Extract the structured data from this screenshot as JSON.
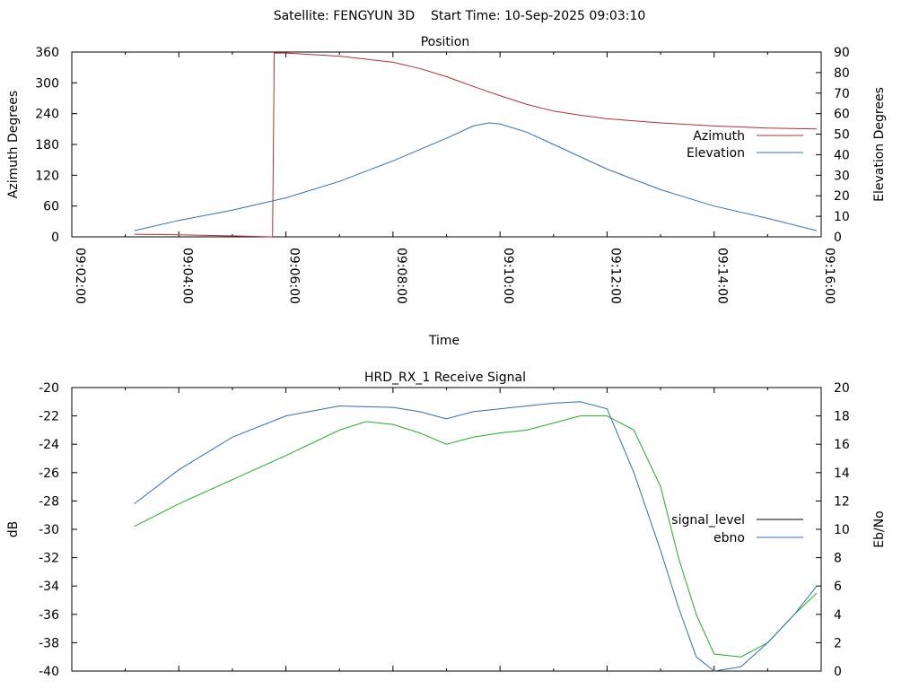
{
  "header": {
    "title": "Satellite: FENGYUN 3D    Start Time: 10-Sep-2025 09:03:10"
  },
  "colors": {
    "azimuth": "#b03030",
    "elevation": "#3070b0",
    "signal_level": "#20b020",
    "ebno": "#2f6eb0",
    "axis": "#000000"
  },
  "chart_data": [
    {
      "type": "line",
      "title": "Position",
      "xlabel": "Time",
      "ylabel": "Azimuth Degrees",
      "y2label": "Elevation Degrees",
      "xlim": [
        "09:02:00",
        "09:16:00"
      ],
      "ylim": [
        0,
        360
      ],
      "y2lim": [
        0,
        90
      ],
      "xticks": [
        "09:02:00",
        "09:04:00",
        "09:06:00",
        "09:08:00",
        "09:10:00",
        "09:12:00",
        "09:14:00",
        "09:16:00"
      ],
      "yticks": [
        "0",
        "60",
        "120",
        "180",
        "240",
        "300",
        "360"
      ],
      "y2ticks": [
        "0",
        "10",
        "20",
        "30",
        "40",
        "50",
        "60",
        "70",
        "80",
        "90"
      ],
      "legend_position": "right",
      "series": [
        {
          "name": "Azimuth",
          "axis": "y",
          "x": [
            "09:03:10",
            "09:04:00",
            "09:05:00",
            "09:05:45",
            "09:05:47",
            "09:06:00",
            "09:07:00",
            "09:08:00",
            "09:08:30",
            "09:09:00",
            "09:09:30",
            "09:10:00",
            "09:10:30",
            "09:11:00",
            "09:11:30",
            "09:12:00",
            "09:13:00",
            "09:14:00",
            "09:15:00",
            "09:15:55"
          ],
          "values": [
            5,
            4,
            2,
            0,
            358,
            358,
            352,
            340,
            328,
            312,
            293,
            275,
            258,
            245,
            237,
            230,
            222,
            216,
            212,
            210
          ]
        },
        {
          "name": "Elevation",
          "axis": "y2",
          "x": [
            "09:03:10",
            "09:04:00",
            "09:05:00",
            "09:06:00",
            "09:07:00",
            "09:08:00",
            "09:09:00",
            "09:09:30",
            "09:09:48",
            "09:10:00",
            "09:10:30",
            "09:11:00",
            "09:12:00",
            "09:13:00",
            "09:14:00",
            "09:15:00",
            "09:15:55"
          ],
          "values": [
            3,
            8,
            13,
            19,
            27,
            37,
            48,
            54,
            55.5,
            55,
            51,
            45,
            33,
            23,
            15,
            9,
            3
          ]
        }
      ]
    },
    {
      "type": "line",
      "title": "HRD_RX_1 Receive Signal",
      "xlabel": "",
      "ylabel": "dB",
      "y2label": "Eb/No",
      "xlim": [
        "09:02:00",
        "09:16:00"
      ],
      "ylim": [
        -40,
        -20
      ],
      "y2lim": [
        0,
        20
      ],
      "yticks": [
        "-40",
        "-38",
        "-36",
        "-34",
        "-32",
        "-30",
        "-28",
        "-26",
        "-24",
        "-22",
        "-20"
      ],
      "y2ticks": [
        "0",
        "2",
        "4",
        "6",
        "8",
        "10",
        "12",
        "14",
        "16",
        "18",
        "20"
      ],
      "legend_position": "right",
      "series": [
        {
          "name": "signal_level",
          "axis": "y",
          "x": [
            "09:03:10",
            "09:04:00",
            "09:05:00",
            "09:06:00",
            "09:07:00",
            "09:07:30",
            "09:08:00",
            "09:08:30",
            "09:09:00",
            "09:09:30",
            "09:10:00",
            "09:10:30",
            "09:11:00",
            "09:11:30",
            "09:12:00",
            "09:12:30",
            "09:13:00",
            "09:13:20",
            "09:13:40",
            "09:14:00",
            "09:14:30",
            "09:15:00",
            "09:15:30",
            "09:15:55"
          ],
          "values": [
            -29.8,
            -28.2,
            -26.5,
            -24.8,
            -23.0,
            -22.4,
            -22.6,
            -23.2,
            -24.0,
            -23.5,
            -23.2,
            -23.0,
            -22.5,
            -22.0,
            -22.0,
            -23.0,
            -27.0,
            -32.0,
            -36.0,
            -38.8,
            -39.0,
            -38.0,
            -36.0,
            -34.5
          ]
        },
        {
          "name": "ebno",
          "axis": "y2",
          "x": [
            "09:03:10",
            "09:04:00",
            "09:05:00",
            "09:06:00",
            "09:07:00",
            "09:08:00",
            "09:08:30",
            "09:09:00",
            "09:09:30",
            "09:10:00",
            "09:10:30",
            "09:11:00",
            "09:11:30",
            "09:12:00",
            "09:12:30",
            "09:13:00",
            "09:13:20",
            "09:13:40",
            "09:14:00",
            "09:14:30",
            "09:15:00",
            "09:15:30",
            "09:15:55"
          ],
          "values": [
            11.8,
            14.2,
            16.5,
            18.0,
            18.7,
            18.6,
            18.3,
            17.8,
            18.3,
            18.5,
            18.7,
            18.9,
            19.0,
            18.5,
            14.0,
            8.5,
            4.5,
            1.0,
            0,
            0.3,
            2.0,
            4.0,
            6.0
          ]
        }
      ]
    }
  ]
}
